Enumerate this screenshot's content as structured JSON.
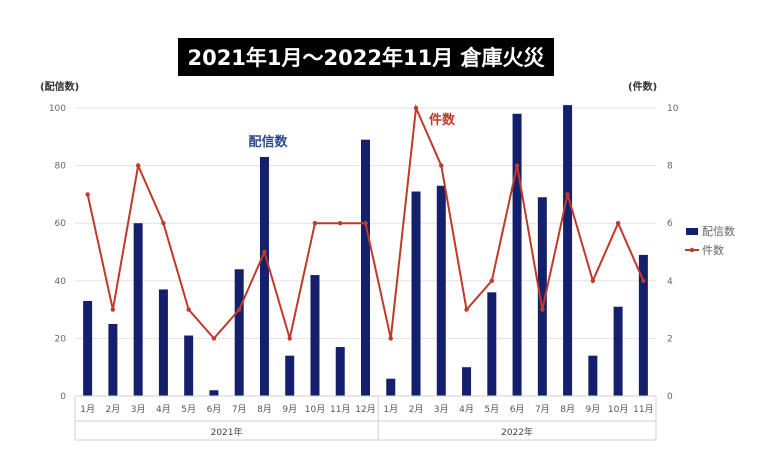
{
  "title": "2021年1月〜2022年11月 倉庫火災",
  "left_axis_unit": "(配信数)",
  "right_axis_unit": "(件数)",
  "chart_data": {
    "type": "bar",
    "title": "2021年1月〜2022年11月 倉庫火災",
    "categories": [
      "1月",
      "2月",
      "3月",
      "4月",
      "5月",
      "6月",
      "7月",
      "8月",
      "9月",
      "10月",
      "11月",
      "12月",
      "1月",
      "2月",
      "3月",
      "4月",
      "5月",
      "6月",
      "7月",
      "8月",
      "9月",
      "10月",
      "11月"
    ],
    "category_groups": [
      {
        "label": "2021年",
        "count": 12
      },
      {
        "label": "2022年",
        "count": 11
      }
    ],
    "series": [
      {
        "name": "配信数",
        "type": "bar",
        "axis": "left",
        "color": "#14206b",
        "values": [
          33,
          25,
          60,
          37,
          21,
          2,
          44,
          83,
          14,
          42,
          17,
          89,
          6,
          71,
          73,
          10,
          36,
          98,
          69,
          101,
          14,
          31,
          49
        ]
      },
      {
        "name": "件数",
        "type": "line",
        "axis": "right",
        "color": "#c0392b",
        "values": [
          7,
          3,
          8,
          6,
          3,
          2,
          3,
          5,
          2,
          6,
          6,
          6,
          2,
          10,
          8,
          3,
          4,
          8,
          3,
          7,
          4,
          6,
          4
        ]
      }
    ],
    "ylim_left": [
      0,
      100
    ],
    "yticks_left": [
      0,
      20,
      40,
      60,
      80,
      100
    ],
    "ylim_right": [
      0,
      10
    ],
    "yticks_right": [
      0,
      2,
      4,
      6,
      8,
      10
    ],
    "legend": [
      "配信数",
      "件数"
    ],
    "legend_position": "right",
    "annotations": [
      {
        "text": "配信数",
        "color": "#2e4b8f"
      },
      {
        "text": "件数",
        "color": "#c0392b"
      }
    ],
    "grid": true
  }
}
